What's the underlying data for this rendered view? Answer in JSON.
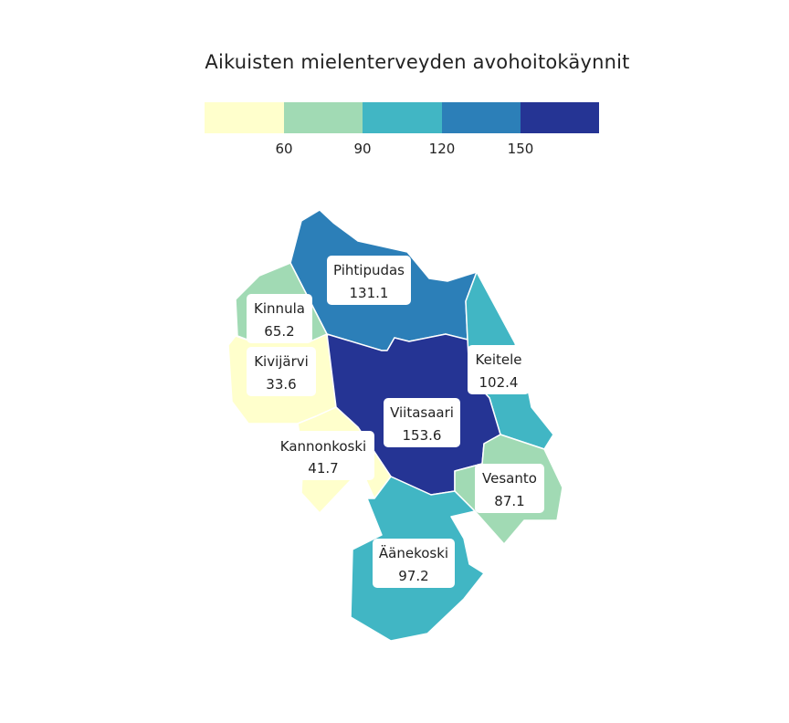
{
  "title": "Aikuisten mielenterveyden avohoitokäynnit",
  "legend": {
    "colors": [
      "#ffffcc",
      "#a1dab4",
      "#41b6c4",
      "#2c7fb8",
      "#253494"
    ],
    "ticks": [
      "60",
      "90",
      "120",
      "150"
    ]
  },
  "regions": [
    {
      "name": "Pihtipudas",
      "value": "131.1",
      "color": "#2c7fb8"
    },
    {
      "name": "Kinnula",
      "value": "65.2",
      "color": "#a1dab4"
    },
    {
      "name": "Kivijärvi",
      "value": "33.6",
      "color": "#ffffcc"
    },
    {
      "name": "Keitele",
      "value": "102.4",
      "color": "#41b6c4"
    },
    {
      "name": "Viitasaari",
      "value": "153.6",
      "color": "#253494"
    },
    {
      "name": "Kannonkoski",
      "value": "41.7",
      "color": "#ffffcc"
    },
    {
      "name": "Vesanto",
      "value": "87.1",
      "color": "#a1dab4"
    },
    {
      "name": "Äänekoski",
      "value": "97.2",
      "color": "#41b6c4"
    }
  ]
}
